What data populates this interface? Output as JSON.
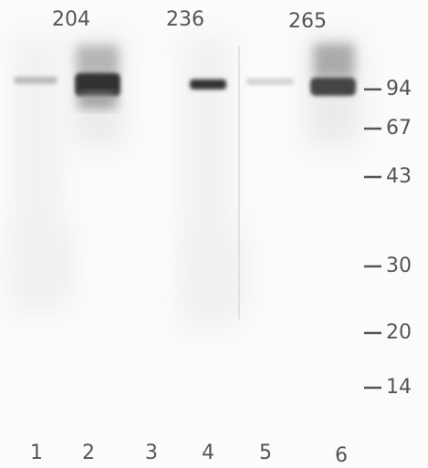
{
  "group_labels": [
    "204",
    "236",
    "265"
  ],
  "markers": [
    "94",
    "67",
    "43",
    "30",
    "20",
    "14"
  ],
  "lanes": [
    "1",
    "2",
    "3",
    "4",
    "5",
    "6"
  ]
}
